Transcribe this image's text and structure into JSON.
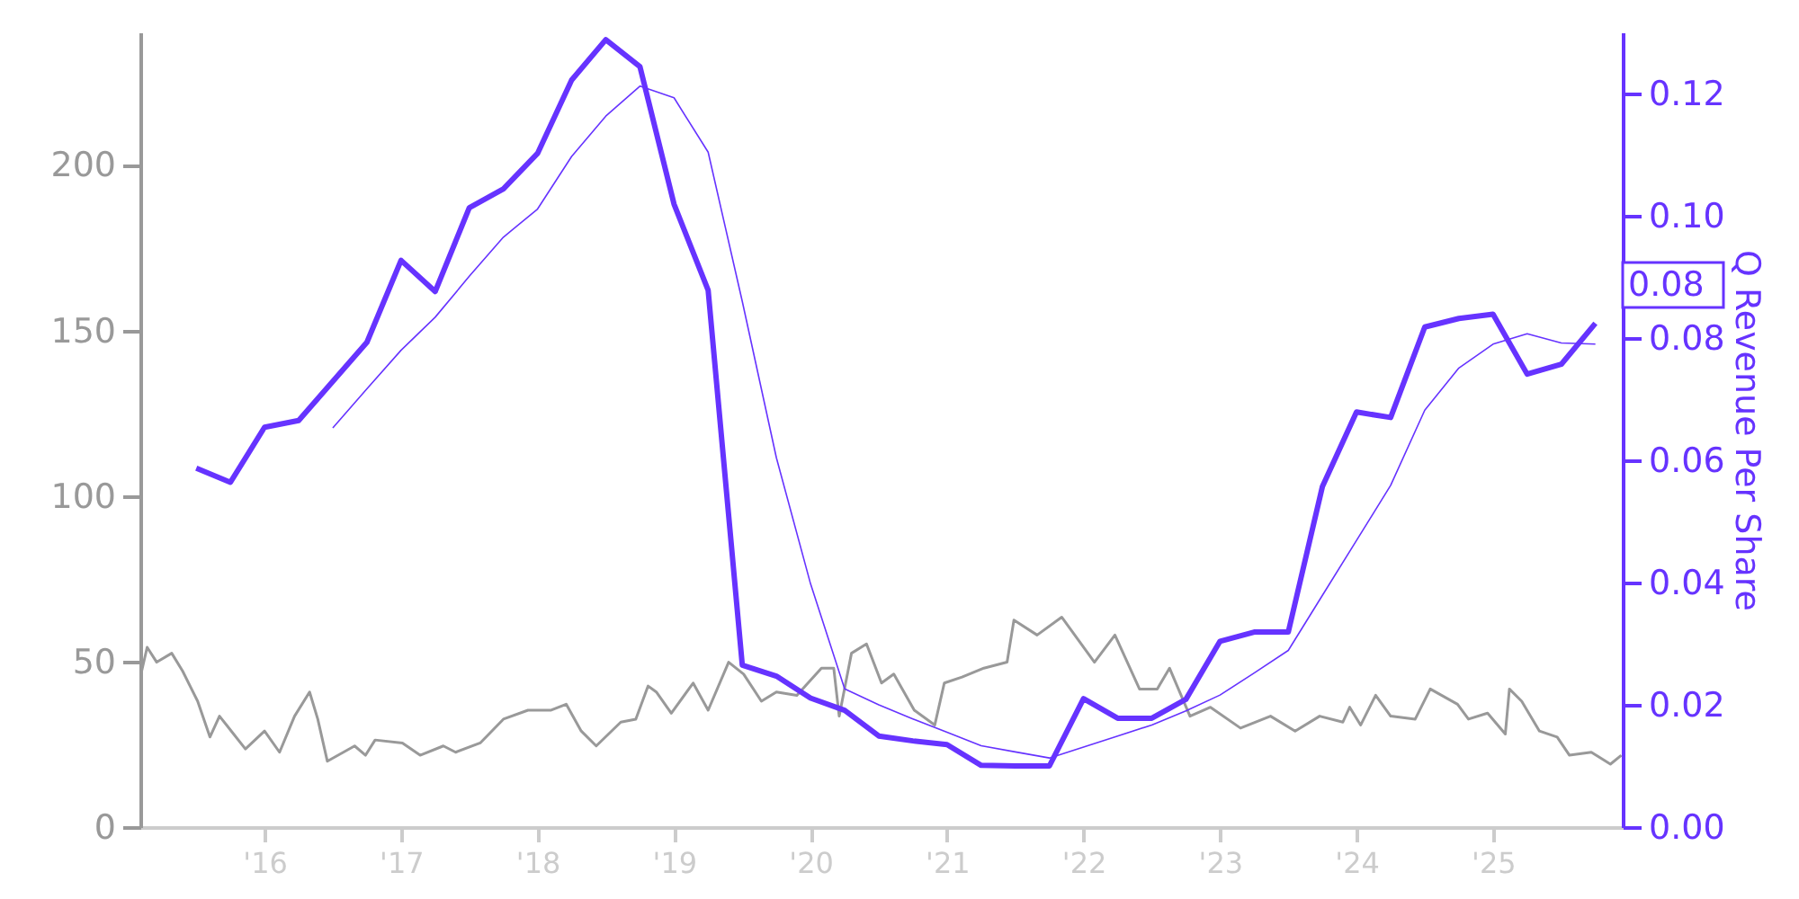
{
  "chart_data": {
    "type": "line",
    "xlim": [
      2015.09,
      2025.95
    ],
    "xticks": [
      {
        "value": 2016,
        "label": "'16"
      },
      {
        "value": 2017,
        "label": "'17"
      },
      {
        "value": 2018,
        "label": "'18"
      },
      {
        "value": 2019,
        "label": "'19"
      },
      {
        "value": 2020,
        "label": "'20"
      },
      {
        "value": 2021,
        "label": "'21"
      },
      {
        "value": 2022,
        "label": "'22"
      },
      {
        "value": 2023,
        "label": "'23"
      },
      {
        "value": 2024,
        "label": "'24"
      },
      {
        "value": 2025,
        "label": "'25"
      }
    ],
    "ylim": [
      0,
      240
    ],
    "yticks": [
      0,
      50,
      100,
      150,
      200
    ],
    "y2lim": [
      0,
      0.13
    ],
    "y2ticks": [
      {
        "value": 0,
        "label": "0.00"
      },
      {
        "value": 0.02,
        "label": "0.02"
      },
      {
        "value": 0.04,
        "label": "0.04"
      },
      {
        "value": 0.06,
        "label": "0.06"
      },
      {
        "value": 0.08,
        "label": "0.08"
      },
      {
        "value": 0.1,
        "label": "0.10"
      },
      {
        "value": 0.12,
        "label": "0.12"
      }
    ],
    "y2label": "Q Revenue Per Share",
    "series": [
      {
        "color": "#999999",
        "x": [
          2015.1,
          2015.14,
          2015.21,
          2015.32,
          2015.4,
          2015.51,
          2015.6,
          2015.67,
          2015.86,
          2016.0,
          2016.11,
          2016.22,
          2016.33,
          2016.39,
          2016.46,
          2016.66,
          2016.74,
          2016.81,
          2017.01,
          2017.14,
          2017.31,
          2017.4,
          2017.58,
          2017.75,
          2017.93,
          2018.1,
          2018.21,
          2018.32,
          2018.43,
          2018.61,
          2018.72,
          2018.81,
          2018.87,
          2018.98,
          2019.14,
          2019.25,
          2019.4,
          2019.51,
          2019.64,
          2019.75,
          2019.9,
          2020.08,
          2020.17,
          2020.21,
          2020.3,
          2020.41,
          2020.52,
          2020.61,
          2020.76,
          2020.91,
          2020.98,
          2021.11,
          2021.27,
          2021.44,
          2021.49,
          2021.66,
          2021.84,
          2022.08,
          2022.23,
          2022.41,
          2022.54,
          2022.63,
          2022.78,
          2022.93,
          2023.15,
          2023.37,
          2023.55,
          2023.73,
          2023.9,
          2023.95,
          2024.03,
          2024.14,
          2024.25,
          2024.43,
          2024.54,
          2024.74,
          2024.82,
          2024.96,
          2025.09,
          2025.12,
          2025.21,
          2025.34,
          2025.47,
          2025.56,
          2025.72,
          2025.86,
          2025.94
        ],
        "values": [
          47.1,
          54.3,
          49.8,
          52.5,
          47.1,
          38,
          27.2,
          33.5,
          23.6,
          29,
          22.6,
          33.5,
          40.8,
          32.6,
          19.9,
          24.5,
          21.7,
          26.3,
          25.4,
          21.7,
          24.5,
          22.6,
          25.4,
          32.6,
          35.3,
          35.3,
          37.1,
          29,
          24.5,
          31.7,
          32.6,
          42.6,
          40.8,
          34.4,
          43.5,
          35.3,
          49.8,
          46.2,
          38,
          40.8,
          39.8,
          48,
          48,
          33.5,
          52.5,
          55.3,
          43.5,
          46.2,
          35.3,
          30.8,
          43.5,
          45.3,
          48,
          49.8,
          62.5,
          58,
          63.4,
          49.8,
          58,
          41.7,
          41.7,
          48,
          33.5,
          36.2,
          29.9,
          33.5,
          29,
          33.5,
          31.7,
          36.2,
          30.8,
          39.8,
          33.5,
          32.6,
          41.7,
          37.1,
          32.6,
          34.4,
          28.1,
          41.7,
          38,
          29,
          27.2,
          21.7,
          22.6,
          19,
          21.7
        ]
      },
      {
        "color": "#6633ff",
        "axis": "y2",
        "x": [
          2015.5,
          2015.75,
          2016.0,
          2016.25,
          2016.5,
          2016.75,
          2017.0,
          2017.25,
          2017.5,
          2017.75,
          2018.0,
          2018.25,
          2018.5,
          2018.75,
          2019.0,
          2019.25,
          2019.5,
          2019.75,
          2020.0,
          2020.25,
          2020.5,
          2020.75,
          2021.0,
          2021.25,
          2021.5,
          2021.75,
          2022.0,
          2022.25,
          2022.5,
          2022.75,
          2023.0,
          2023.25,
          2023.5,
          2023.75,
          2024.0,
          2024.25,
          2024.5,
          2024.75,
          2025.0,
          2025.25,
          2025.5,
          2025.75
        ],
        "values": [
          0.0587,
          0.0564,
          0.0654,
          0.0665,
          0.0729,
          0.0793,
          0.0927,
          0.0876,
          0.1013,
          0.1044,
          0.1102,
          0.1222,
          0.1288,
          0.1244,
          0.1019,
          0.0878,
          0.0265,
          0.0247,
          0.0211,
          0.0191,
          0.0149,
          0.0141,
          0.0135,
          0.0101,
          0.01,
          0.01,
          0.021,
          0.0178,
          0.0178,
          0.0209,
          0.0304,
          0.0319,
          0.0319,
          0.0557,
          0.0679,
          0.067,
          0.0818,
          0.0832,
          0.0839,
          0.0741,
          0.0757,
          0.0824
        ]
      },
      {
        "color": "#6633ff",
        "axis": "y2",
        "x": [
          2016.5,
          2016.75,
          2017.0,
          2017.25,
          2017.5,
          2017.75,
          2018.0,
          2018.25,
          2018.5,
          2018.75,
          2019.0,
          2019.25,
          2019.5,
          2019.75,
          2020.0,
          2020.25,
          2020.5,
          2020.75,
          2021.0,
          2021.25,
          2021.5,
          2021.75,
          2022.0,
          2022.25,
          2022.5,
          2022.75,
          2023.0,
          2023.25,
          2023.5,
          2023.75,
          2024.0,
          2024.25,
          2024.5,
          2024.75,
          2025.0,
          2025.25,
          2025.5,
          2025.75
        ],
        "values": [
          0.0653,
          0.0717,
          0.078,
          0.0834,
          0.0901,
          0.0965,
          0.1011,
          0.1097,
          0.1163,
          0.1212,
          0.1193,
          0.1104,
          0.086,
          0.0604,
          0.0398,
          0.0226,
          0.02,
          0.0177,
          0.0155,
          0.0133,
          0.0123,
          0.0113,
          0.0131,
          0.0149,
          0.0167,
          0.019,
          0.0216,
          0.0252,
          0.0289,
          0.0379,
          0.0469,
          0.0559,
          0.0682,
          0.0751,
          0.079,
          0.0807,
          0.0792,
          0.079
        ]
      }
    ],
    "annotations": [
      "0.08"
    ]
  }
}
